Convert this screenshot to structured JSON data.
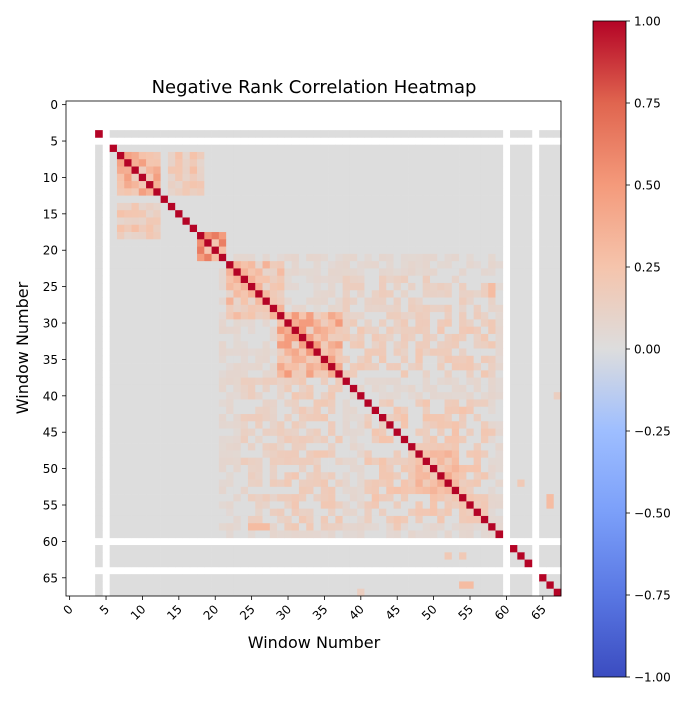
{
  "chart_data": {
    "type": "heatmap",
    "title": "Negative Rank Correlation Heatmap",
    "xlabel": "Window Number",
    "ylabel": "Window Number",
    "n": 68,
    "x_ticks": [
      0,
      5,
      10,
      15,
      20,
      25,
      30,
      35,
      40,
      45,
      50,
      55,
      60,
      65
    ],
    "y_ticks": [
      0,
      5,
      10,
      15,
      20,
      25,
      30,
      35,
      40,
      45,
      50,
      55,
      60,
      65
    ],
    "x_tick_labels": [
      "0",
      "5",
      "10",
      "15",
      "20",
      "25",
      "30",
      "35",
      "40",
      "45",
      "50",
      "55",
      "60",
      "65"
    ],
    "y_tick_labels": [
      "0",
      "5",
      "10",
      "15",
      "20",
      "25",
      "30",
      "35",
      "40",
      "45",
      "50",
      "55",
      "60",
      "65"
    ],
    "colorbar": {
      "colormap": "coolwarm",
      "vmin": -1.0,
      "vmax": 1.0,
      "ticks": [
        1.0,
        0.75,
        0.5,
        0.25,
        0.0,
        -0.25,
        -0.5,
        -0.75,
        -1.0
      ],
      "tick_labels": [
        "1.00",
        "0.75",
        "0.50",
        "0.25",
        "0.00",
        "−0.25",
        "−0.50",
        "−0.75",
        "−1.00"
      ]
    },
    "nan_indices": [
      0,
      1,
      2,
      3,
      5,
      60,
      64
    ],
    "isolated_indices": [
      4,
      61,
      62,
      63,
      65,
      66,
      67
    ],
    "diagonal_value": 1.0,
    "background_value": 0.0,
    "blocks": [
      {
        "r": [
          7,
          12
        ],
        "c": [
          7,
          12
        ],
        "v": 0.35
      },
      {
        "r": [
          7,
          12
        ],
        "c": [
          14,
          18
        ],
        "v": 0.2
      },
      {
        "r": [
          14,
          18
        ],
        "c": [
          7,
          12
        ],
        "v": 0.2
      },
      {
        "r": [
          18,
          21
        ],
        "c": [
          18,
          21
        ],
        "v": 0.45
      },
      {
        "r": [
          22,
          29
        ],
        "c": [
          22,
          29
        ],
        "v": 0.25
      },
      {
        "r": [
          29,
          37
        ],
        "c": [
          29,
          37
        ],
        "v": 0.35
      },
      {
        "r": [
          24,
          30
        ],
        "c": [
          38,
          58
        ],
        "v": 0.12
      },
      {
        "r": [
          38,
          58
        ],
        "c": [
          24,
          30
        ],
        "v": 0.12
      },
      {
        "r": [
          30,
          37
        ],
        "c": [
          38,
          58
        ],
        "v": 0.15
      },
      {
        "r": [
          38,
          58
        ],
        "c": [
          30,
          37
        ],
        "v": 0.15
      },
      {
        "r": [
          41,
          57
        ],
        "c": [
          41,
          57
        ],
        "v": 0.18
      },
      {
        "r": [
          48,
          53
        ],
        "c": [
          48,
          53
        ],
        "v": 0.3
      },
      {
        "r": [
          21,
          59
        ],
        "c": [
          21,
          59
        ],
        "v": 0.06
      }
    ],
    "spots": [
      {
        "r": 8,
        "c": 8,
        "v": 0.45
      },
      {
        "r": 11,
        "c": 8,
        "v": 0.4
      },
      {
        "r": 9,
        "c": 12,
        "v": 0.4
      },
      {
        "r": 19,
        "c": 19,
        "v": 0.55
      },
      {
        "r": 31,
        "c": 31,
        "v": 0.5
      },
      {
        "r": 32,
        "c": 33,
        "v": 0.45
      },
      {
        "r": 33,
        "c": 32,
        "v": 0.45
      },
      {
        "r": 35,
        "c": 36,
        "v": 0.45
      },
      {
        "r": 36,
        "c": 35,
        "v": 0.45
      },
      {
        "r": 25,
        "c": 58,
        "v": 0.3
      },
      {
        "r": 26,
        "c": 58,
        "v": 0.3
      },
      {
        "r": 52,
        "c": 51,
        "v": 0.4
      },
      {
        "r": 51,
        "c": 52,
        "v": 0.4
      },
      {
        "r": 53,
        "c": 49,
        "v": 0.3
      },
      {
        "r": 49,
        "c": 53,
        "v": 0.3
      },
      {
        "r": 58,
        "c": 25,
        "v": 0.3
      },
      {
        "r": 58,
        "c": 26,
        "v": 0.3
      },
      {
        "r": 58,
        "c": 27,
        "v": 0.3
      },
      {
        "r": 54,
        "c": 66,
        "v": 0.3
      },
      {
        "r": 55,
        "c": 66,
        "v": 0.3
      },
      {
        "r": 66,
        "c": 54,
        "v": 0.3
      },
      {
        "r": 66,
        "c": 55,
        "v": 0.3
      },
      {
        "r": 52,
        "c": 62,
        "v": 0.2
      },
      {
        "r": 62,
        "c": 52,
        "v": 0.2
      },
      {
        "r": 62,
        "c": 54,
        "v": 0.2
      },
      {
        "r": 30,
        "c": 58,
        "v": 0.2
      },
      {
        "r": 45,
        "c": 58,
        "v": 0.2
      },
      {
        "r": 58,
        "c": 45,
        "v": 0.2
      },
      {
        "r": 40,
        "c": 67,
        "v": 0.15
      },
      {
        "r": 67,
        "c": 40,
        "v": 0.15
      }
    ]
  }
}
